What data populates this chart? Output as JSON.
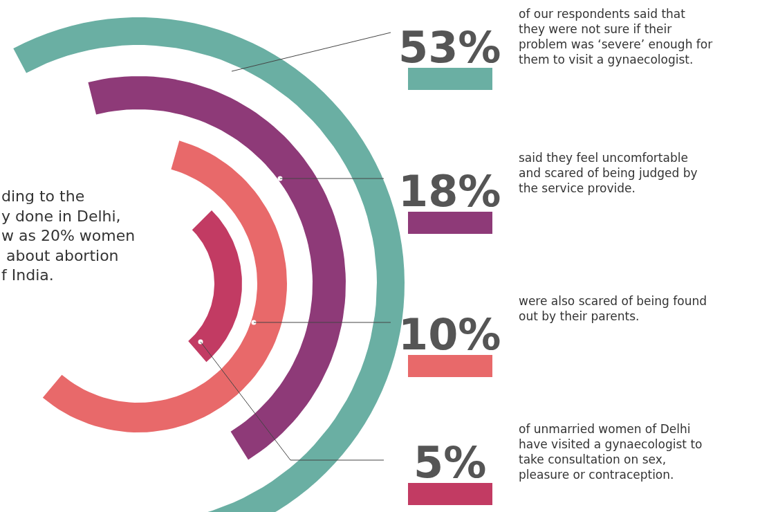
{
  "chart_data": {
    "type": "other",
    "categories": [
      "of our respondents said that they were not sure if their problem was ‘severe’ enough for them to visit a gynaecologist.",
      "said they feel uncomfortable and scared of being judged by the service provide.",
      "were also scared of being found out by their parents.",
      "of unmarried women of Delhi have visited a gynaecologist to take consultation on sex, pleasure or contraception."
    ],
    "values": [
      53,
      18,
      10,
      5
    ],
    "value_labels": [
      "53%",
      "18%",
      "10%",
      "5%"
    ],
    "colors": [
      "#6aafa3",
      "#8e3a78",
      "#e8696a",
      "#c23b63"
    ],
    "annotations": [
      "ding to the\ny done in Delhi,\nw as 20% women\n about abortion\nf India."
    ]
  }
}
